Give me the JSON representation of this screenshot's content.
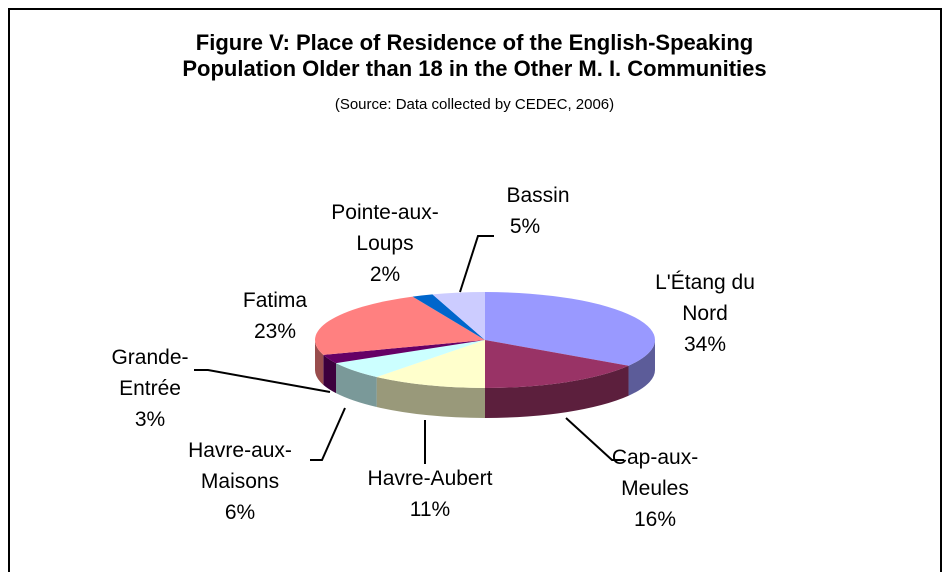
{
  "chart_data": {
    "type": "pie",
    "title": [
      "Figure V: Place of Residence of the English-Speaking",
      "Population Older than 18 in the Other M. I. Communities"
    ],
    "subtitle": "(Source: Data collected by CEDEC, 2006)",
    "categories": [
      "L'Étang du Nord",
      "Cap-aux-Meules",
      "Havre-Aubert",
      "Havre-aux-Maisons",
      "Grande-Entrée",
      "Fatima",
      "Pointe-aux-Loups",
      "Bassin"
    ],
    "values": [
      34,
      16,
      11,
      6,
      3,
      23,
      2,
      5
    ],
    "value_labels": [
      "34%",
      "16%",
      "11%",
      "6%",
      "3%",
      "23%",
      "2%",
      "5%"
    ],
    "colors": [
      "#9999ff",
      "#993366",
      "#ffffcc",
      "#ccffff",
      "#660066",
      "#ff8080",
      "#0066cc",
      "#ccccff"
    ]
  }
}
